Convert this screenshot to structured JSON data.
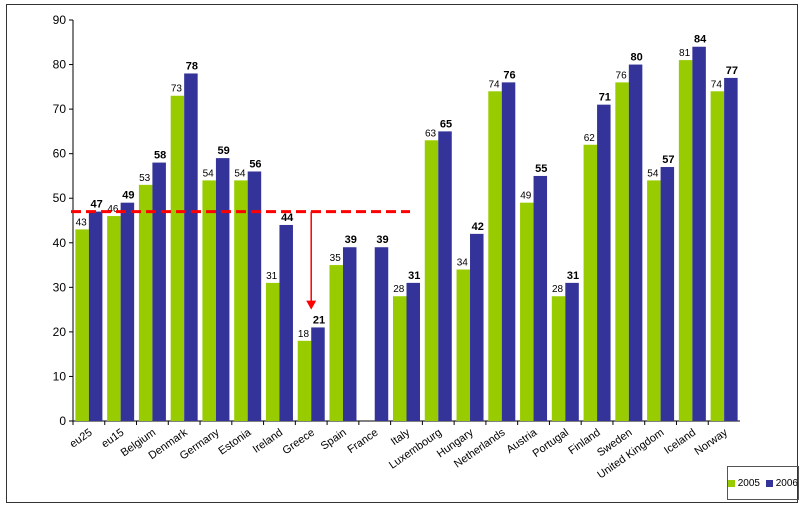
{
  "chart_data": {
    "type": "bar",
    "categories": [
      "eu25",
      "eu15",
      "Belgium",
      "Denmark",
      "Germany",
      "Estonia",
      "Ireland",
      "Greece",
      "Spain",
      "France",
      "Italy",
      "Luxembourg",
      "Hungary",
      "Netherlands",
      "Austria",
      "Portugal",
      "Finland",
      "Sweden",
      "United Kingdom",
      "Iceland",
      "Norway"
    ],
    "series": [
      {
        "name": "2005",
        "color": "#99cc00",
        "values": [
          43,
          46,
          53,
          73,
          54,
          54,
          31,
          18,
          35,
          null,
          28,
          63,
          34,
          74,
          49,
          28,
          62,
          76,
          54,
          81,
          74
        ]
      },
      {
        "name": "2006",
        "color": "#333399",
        "values": [
          47,
          49,
          58,
          78,
          59,
          56,
          44,
          21,
          39,
          39,
          31,
          65,
          42,
          76,
          55,
          31,
          71,
          80,
          57,
          84,
          77
        ]
      }
    ],
    "ylim": [
      0,
      90
    ],
    "yticks": [
      "0",
      "10",
      "20",
      "30",
      "40",
      "50",
      "60",
      "70",
      "80",
      "90"
    ],
    "reference_line": {
      "value": 47,
      "color": "#ff0000",
      "style": "dashed"
    },
    "annotation_arrow": {
      "category": "Greece",
      "from": 47,
      "to": 25,
      "color": "#ff0000"
    },
    "legend_position": "bottom-right",
    "grid": false
  }
}
